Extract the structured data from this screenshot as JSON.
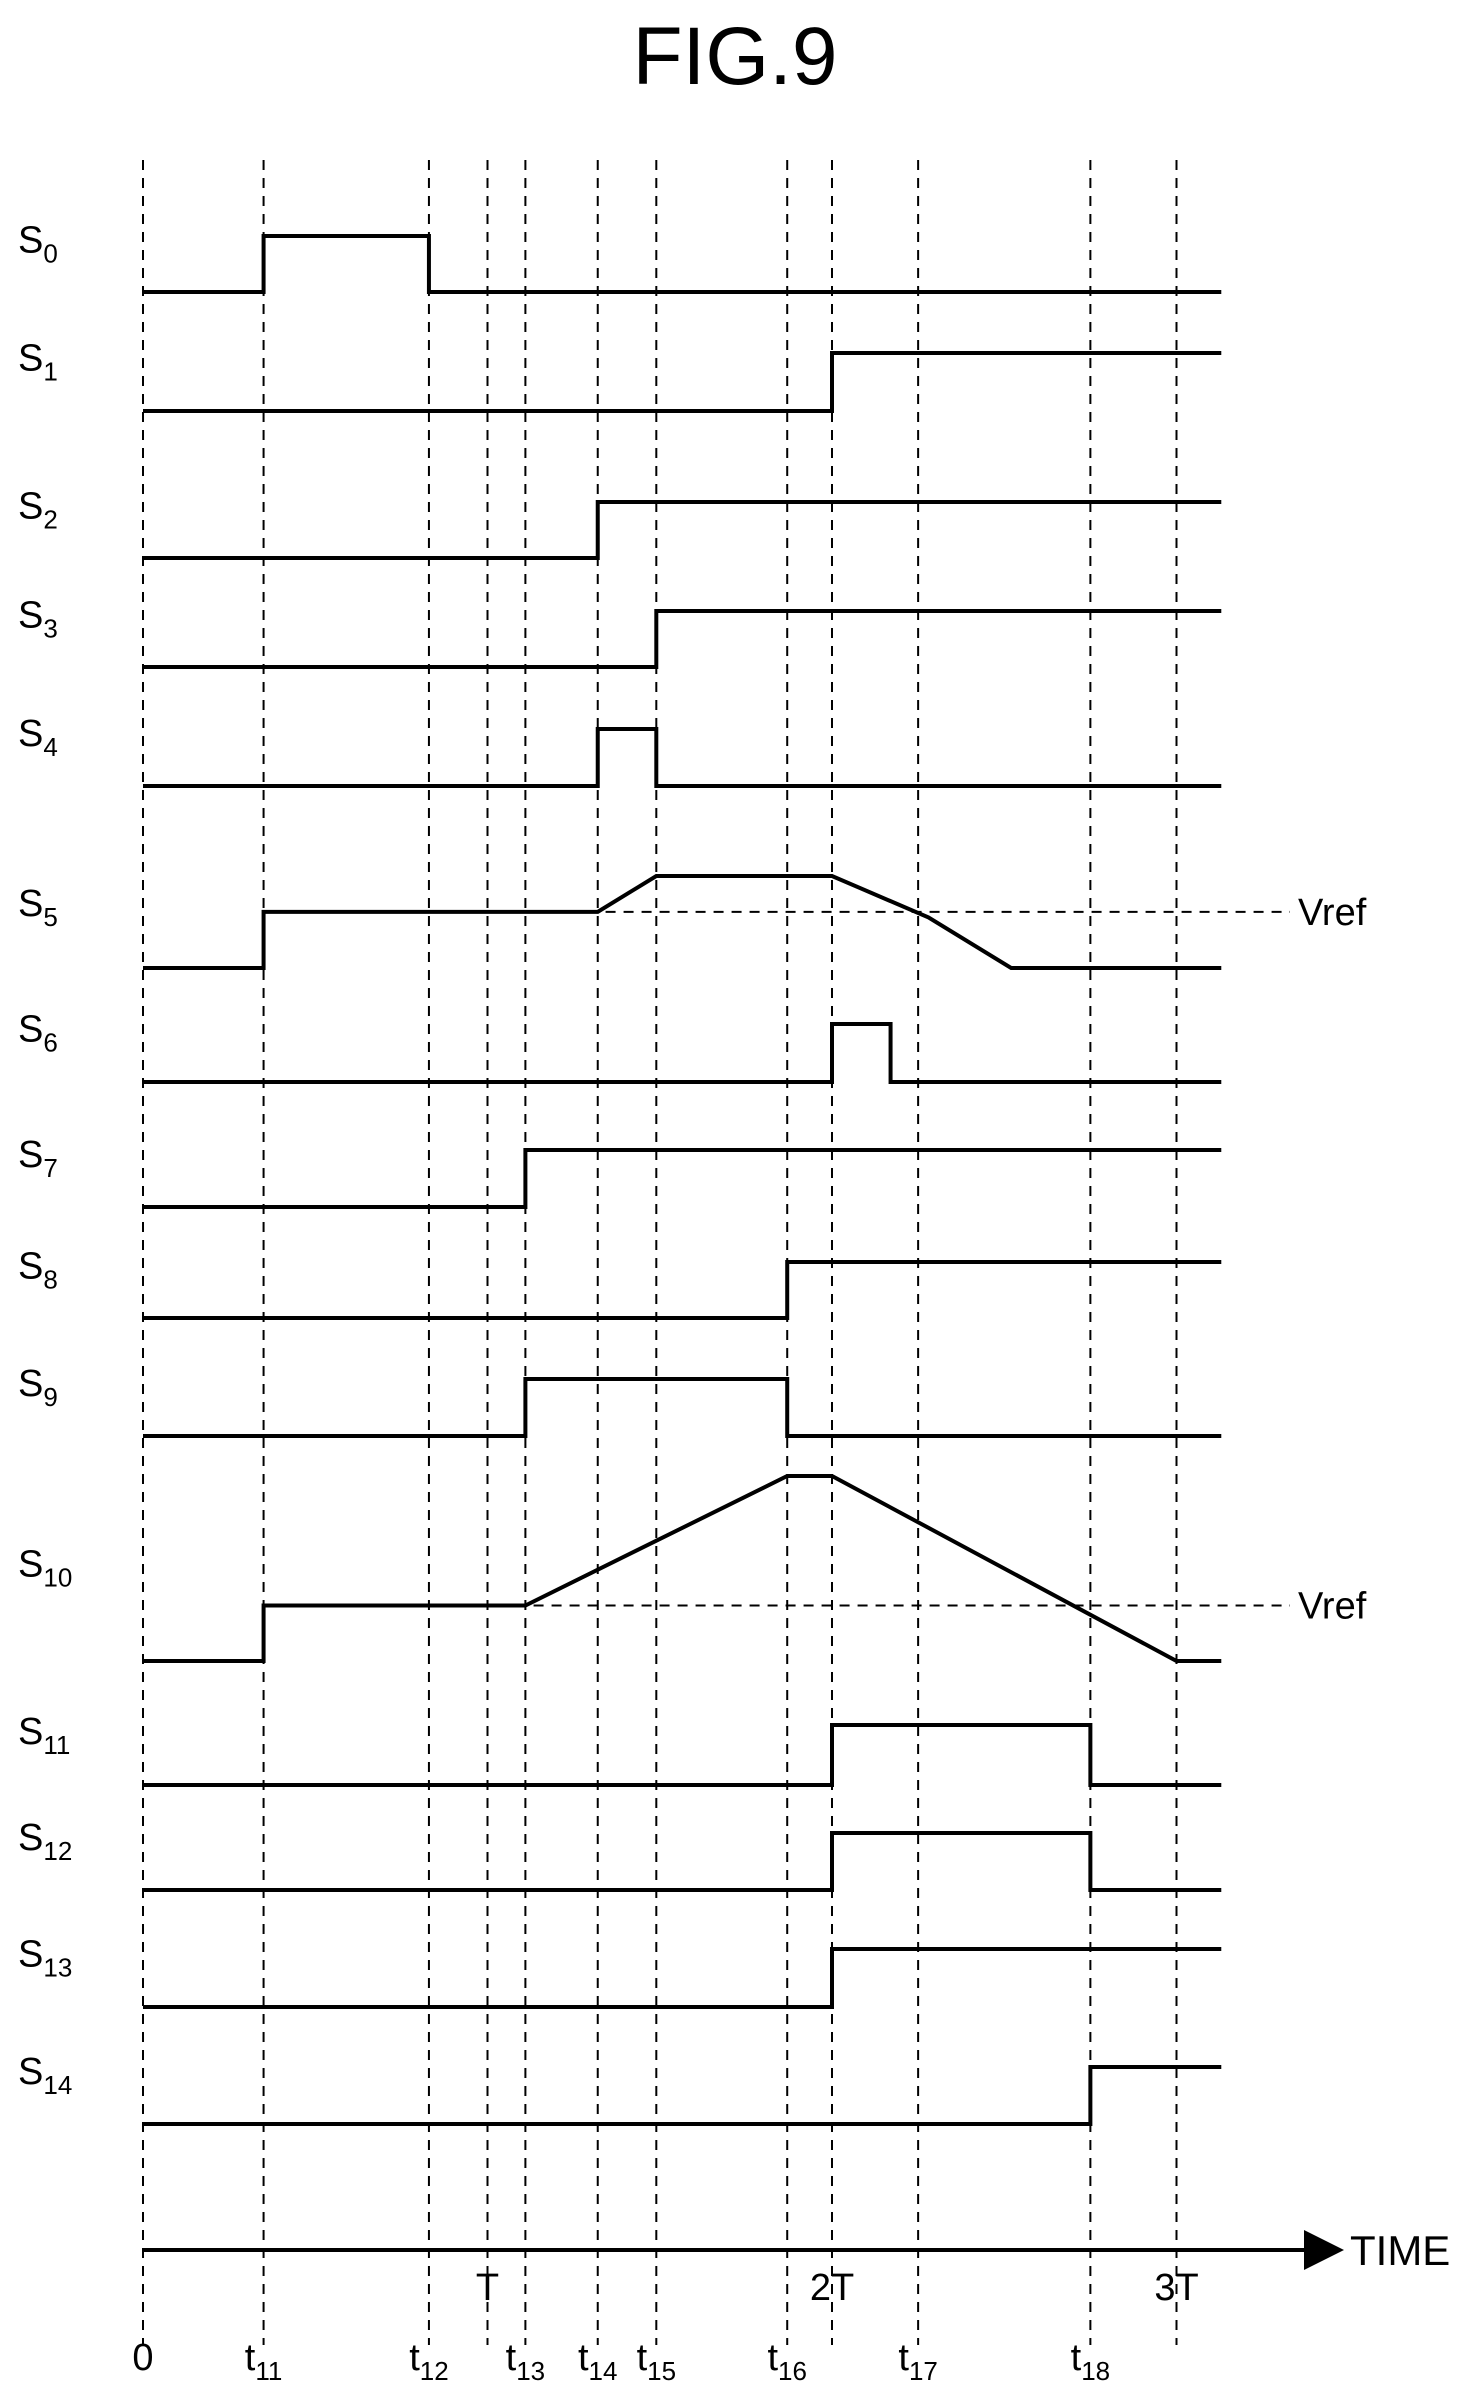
{
  "figure": {
    "title": "FIG.9"
  },
  "time_axis": {
    "label": "TIME",
    "markers": [
      {
        "id": "0",
        "main": "0",
        "sub": "",
        "t": 0
      },
      {
        "id": "t11",
        "main": "t",
        "sub": "11",
        "t": 0.35
      },
      {
        "id": "t12",
        "main": "t",
        "sub": "12",
        "t": 0.83
      },
      {
        "id": "T",
        "main": "T",
        "sub": "",
        "t": 1.0
      },
      {
        "id": "t13",
        "main": "t",
        "sub": "13",
        "t": 1.11
      },
      {
        "id": "t14",
        "main": "t",
        "sub": "14",
        "t": 1.32
      },
      {
        "id": "t15",
        "main": "t",
        "sub": "15",
        "t": 1.49
      },
      {
        "id": "t16",
        "main": "t",
        "sub": "16",
        "t": 1.87
      },
      {
        "id": "2T",
        "main": "2T",
        "sub": "",
        "t": 2.0
      },
      {
        "id": "t17",
        "main": "t",
        "sub": "17",
        "t": 2.25
      },
      {
        "id": "t18",
        "main": "t",
        "sub": "18",
        "t": 2.75
      },
      {
        "id": "3T",
        "main": "3T",
        "sub": "",
        "t": 3.0
      }
    ]
  },
  "reference_label": "Vref",
  "signals": [
    {
      "name": "S",
      "sub": "0",
      "waveform": [
        [
          0,
          0
        ],
        [
          0.35,
          0
        ],
        [
          0.35,
          1
        ],
        [
          0.83,
          1
        ],
        [
          0.83,
          0
        ],
        [
          3.13,
          0
        ]
      ]
    },
    {
      "name": "S",
      "sub": "1",
      "waveform": [
        [
          0,
          0
        ],
        [
          2.0,
          0
        ],
        [
          2.0,
          1
        ],
        [
          3.13,
          1
        ]
      ]
    },
    {
      "name": "S",
      "sub": "2",
      "waveform": [
        [
          0,
          0
        ],
        [
          1.32,
          0
        ],
        [
          1.32,
          1
        ],
        [
          3.13,
          1
        ]
      ]
    },
    {
      "name": "S",
      "sub": "3",
      "waveform": [
        [
          0,
          0
        ],
        [
          1.49,
          0
        ],
        [
          1.49,
          1
        ],
        [
          3.13,
          1
        ]
      ]
    },
    {
      "name": "S",
      "sub": "4",
      "waveform": [
        [
          0,
          0
        ],
        [
          1.32,
          0
        ],
        [
          1.32,
          1
        ],
        [
          1.49,
          1
        ],
        [
          1.49,
          0
        ],
        [
          3.13,
          0
        ]
      ]
    },
    {
      "name": "S",
      "sub": "5",
      "vref_level": 0.61,
      "waveform": [
        [
          0,
          0
        ],
        [
          0.35,
          0
        ],
        [
          0.35,
          0.61
        ],
        [
          1.32,
          0.61
        ],
        [
          1.49,
          1
        ],
        [
          2.0,
          1
        ],
        [
          2.28,
          0.55
        ],
        [
          2.52,
          0
        ],
        [
          3.13,
          0
        ]
      ]
    },
    {
      "name": "S",
      "sub": "6",
      "waveform": [
        [
          0,
          0
        ],
        [
          2.0,
          0
        ],
        [
          2.0,
          1
        ],
        [
          2.17,
          1
        ],
        [
          2.17,
          0
        ],
        [
          3.13,
          0
        ]
      ]
    },
    {
      "name": "S",
      "sub": "7",
      "waveform": [
        [
          0,
          0
        ],
        [
          1.11,
          0
        ],
        [
          1.11,
          1
        ],
        [
          3.13,
          1
        ]
      ]
    },
    {
      "name": "S",
      "sub": "8",
      "waveform": [
        [
          0,
          0
        ],
        [
          1.87,
          0
        ],
        [
          1.87,
          1
        ],
        [
          3.13,
          1
        ]
      ]
    },
    {
      "name": "S",
      "sub": "9",
      "waveform": [
        [
          0,
          0
        ],
        [
          1.11,
          0
        ],
        [
          1.11,
          1
        ],
        [
          1.87,
          1
        ],
        [
          1.87,
          0
        ],
        [
          3.13,
          0
        ]
      ]
    },
    {
      "name": "S",
      "sub": "10",
      "vref_level": 0.3,
      "waveform": [
        [
          0,
          0
        ],
        [
          0.35,
          0
        ],
        [
          0.35,
          0.3
        ],
        [
          1.11,
          0.3
        ],
        [
          1.87,
          1
        ],
        [
          2.0,
          1
        ],
        [
          3.0,
          0
        ],
        [
          3.13,
          0
        ]
      ]
    },
    {
      "name": "S",
      "sub": "11",
      "waveform": [
        [
          0,
          0
        ],
        [
          2.0,
          0
        ],
        [
          2.0,
          1
        ],
        [
          2.75,
          1
        ],
        [
          2.75,
          0
        ],
        [
          3.13,
          0
        ]
      ]
    },
    {
      "name": "S",
      "sub": "12",
      "waveform": [
        [
          0,
          0
        ],
        [
          2.0,
          0
        ],
        [
          2.0,
          1
        ],
        [
          2.75,
          1
        ],
        [
          2.75,
          0
        ],
        [
          3.13,
          0
        ]
      ]
    },
    {
      "name": "S",
      "sub": "13",
      "waveform": [
        [
          0,
          0
        ],
        [
          2.0,
          0
        ],
        [
          2.0,
          1
        ],
        [
          3.13,
          1
        ]
      ]
    },
    {
      "name": "S",
      "sub": "14",
      "waveform": [
        [
          0,
          0
        ],
        [
          2.75,
          0
        ],
        [
          2.75,
          1
        ],
        [
          3.13,
          1
        ]
      ]
    }
  ]
}
